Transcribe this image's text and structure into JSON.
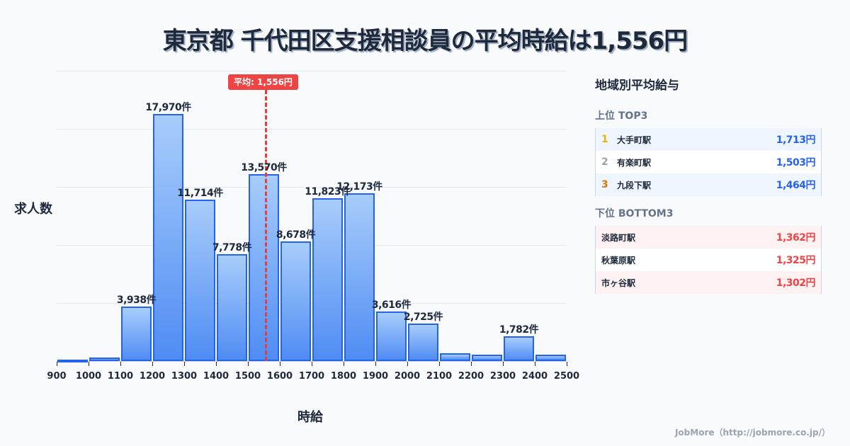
{
  "title": "東京都 千代田区支援相談員の平均時給は1,556円",
  "chart_data": {
    "type": "bar",
    "title": "東京都 千代田区支援相談員の平均時給は1,556円",
    "xlabel": "時給",
    "ylabel": "求人数",
    "categories": [
      "900-1000",
      "1000-1100",
      "1100-1200",
      "1200-1300",
      "1300-1400",
      "1400-1500",
      "1500-1600",
      "1600-1700",
      "1700-1800",
      "1800-1900",
      "1900-2000",
      "2000-2100",
      "2100-2200",
      "2200-2300",
      "2300-2400",
      "2400-2500"
    ],
    "values": [
      50,
      250,
      3938,
      17970,
      11714,
      7778,
      13570,
      8678,
      11823,
      12173,
      3616,
      2725,
      570,
      460,
      1782,
      460
    ],
    "labels": [
      "",
      "",
      "3,938件",
      "17,970件",
      "11,714件",
      "7,778件",
      "13,570件",
      "8,678件",
      "11,823件",
      "12,173件",
      "3,616件",
      "2,725件",
      "",
      "",
      "1,782件",
      ""
    ],
    "x_ticks": [
      "900",
      "1000",
      "1100",
      "1200",
      "1300",
      "1400",
      "1500",
      "1600",
      "1700",
      "1800",
      "1900",
      "2000",
      "2100",
      "2200",
      "2300",
      "2400",
      "2500"
    ],
    "ylim": [
      0,
      21100
    ],
    "grid": true,
    "average": {
      "value": 1556,
      "label": "平均: 1,556円"
    }
  },
  "panel": {
    "title": "地域別平均給与",
    "top_title": "上位 TOP3",
    "top": [
      {
        "rank": "1",
        "name": "大手町駅",
        "value": "1,713円",
        "color": "#eab308"
      },
      {
        "rank": "2",
        "name": "有楽町駅",
        "value": "1,503円",
        "color": "#9ca3af"
      },
      {
        "rank": "3",
        "name": "九段下駅",
        "value": "1,464円",
        "color": "#d97706"
      }
    ],
    "bottom_title": "下位 BOTTOM3",
    "bottom": [
      {
        "name": "淡路町駅",
        "value": "1,362円"
      },
      {
        "name": "秋葉原駅",
        "value": "1,325円"
      },
      {
        "name": "市ヶ谷駅",
        "value": "1,302円"
      }
    ]
  },
  "footer": "JobMore（http://jobmore.co.jp/）"
}
